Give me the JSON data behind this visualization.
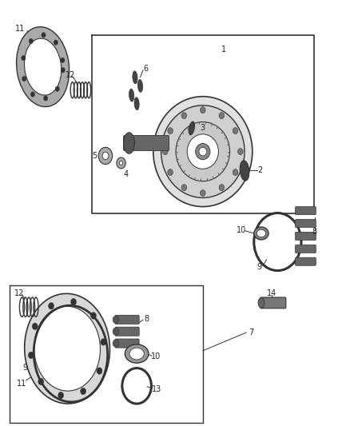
{
  "bg_color": "#ffffff",
  "fig_width": 4.38,
  "fig_height": 5.33,
  "dpi": 100,
  "line_color": "#333333",
  "light_gray": "#aaaaaa",
  "dark_gray": "#444444",
  "mid_gray": "#888888",
  "part_fill": "#cccccc",
  "white": "#ffffff"
}
